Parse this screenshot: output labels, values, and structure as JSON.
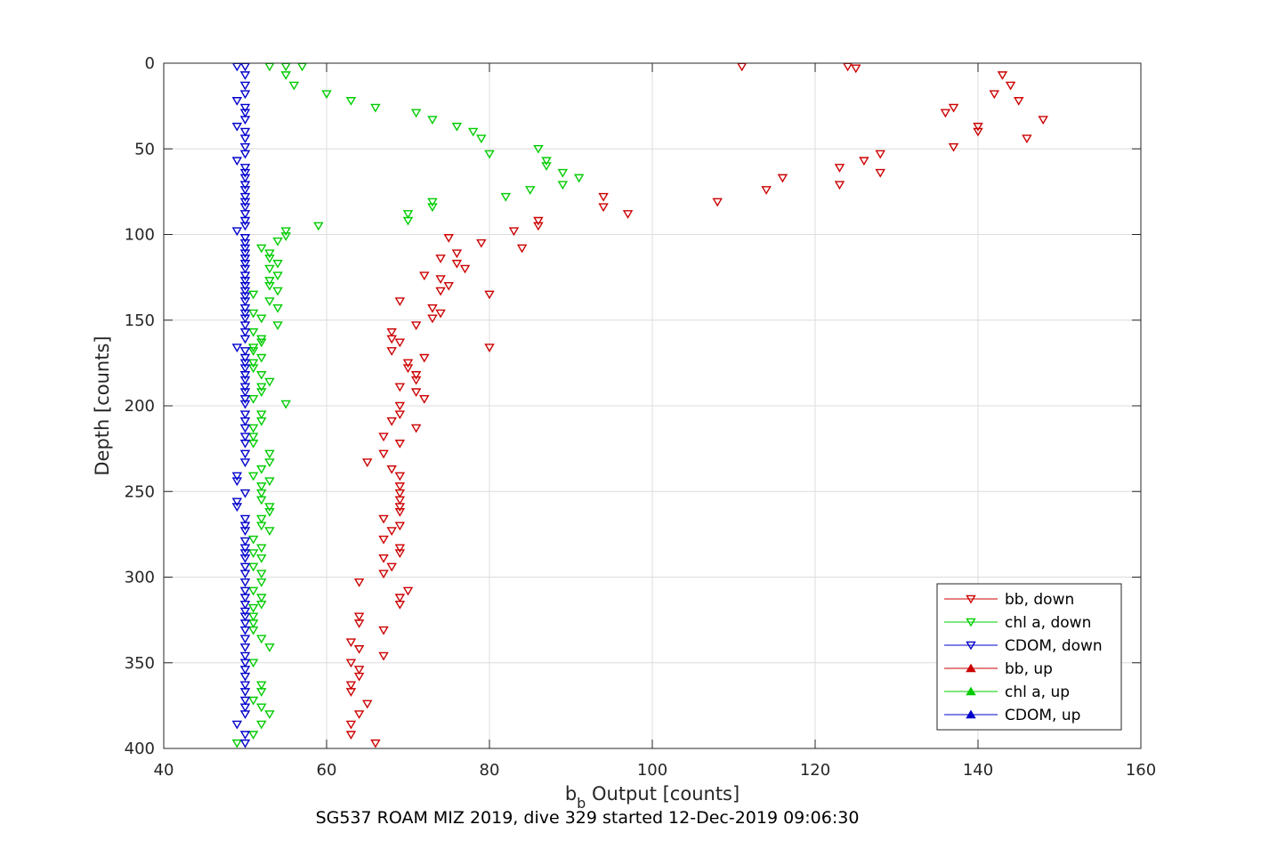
{
  "chart_data": {
    "type": "scatter",
    "xlabel_main": "b",
    "xlabel_sub": "b",
    "xlabel_rest": " Output [counts]",
    "ylabel": "Depth [counts]",
    "caption": "SG537 ROAM MIZ 2019, dive 329 started 12-Dec-2019 09:06:30",
    "xlim": [
      40,
      160
    ],
    "ylim": [
      0,
      400
    ],
    "y_reversed": true,
    "grid": true,
    "legend_position": "bottom-right",
    "x_ticks": [
      "40",
      "60",
      "80",
      "100",
      "120",
      "140",
      "160"
    ],
    "y_ticks": [
      "0",
      "50",
      "100",
      "150",
      "200",
      "250",
      "300",
      "350",
      "400"
    ],
    "series": [
      {
        "name": "bb, down",
        "color": "#cc0000",
        "marker": "triangle-down",
        "points": [
          [
            111,
            2
          ],
          [
            124,
            2
          ],
          [
            125,
            3
          ],
          [
            143,
            7
          ],
          [
            144,
            13
          ],
          [
            142,
            18
          ],
          [
            145,
            22
          ],
          [
            137,
            26
          ],
          [
            136,
            29
          ],
          [
            148,
            33
          ],
          [
            140,
            37
          ],
          [
            140,
            40
          ],
          [
            146,
            44
          ],
          [
            137,
            49
          ],
          [
            128,
            53
          ],
          [
            126,
            57
          ],
          [
            123,
            61
          ],
          [
            128,
            64
          ],
          [
            116,
            67
          ],
          [
            123,
            71
          ],
          [
            114,
            74
          ],
          [
            94,
            78
          ],
          [
            108,
            81
          ],
          [
            94,
            84
          ],
          [
            97,
            88
          ],
          [
            86,
            92
          ],
          [
            86,
            95
          ],
          [
            83,
            98
          ],
          [
            75,
            102
          ],
          [
            79,
            105
          ],
          [
            84,
            108
          ],
          [
            76,
            111
          ],
          [
            74,
            114
          ],
          [
            76,
            117
          ],
          [
            77,
            120
          ],
          [
            72,
            124
          ],
          [
            74,
            126
          ],
          [
            75,
            130
          ],
          [
            74,
            133
          ],
          [
            80,
            135
          ],
          [
            69,
            139
          ],
          [
            73,
            143
          ],
          [
            74,
            146
          ],
          [
            73,
            149
          ],
          [
            71,
            153
          ],
          [
            68,
            157
          ],
          [
            68,
            161
          ],
          [
            69,
            163
          ],
          [
            80,
            166
          ],
          [
            68,
            168
          ],
          [
            72,
            172
          ],
          [
            70,
            175
          ],
          [
            70,
            178
          ],
          [
            71,
            182
          ],
          [
            71,
            185
          ],
          [
            69,
            189
          ],
          [
            71,
            192
          ],
          [
            72,
            196
          ],
          [
            69,
            200
          ],
          [
            69,
            205
          ],
          [
            68,
            209
          ],
          [
            71,
            213
          ],
          [
            67,
            218
          ],
          [
            69,
            222
          ],
          [
            67,
            228
          ],
          [
            65,
            233
          ],
          [
            68,
            237
          ],
          [
            69,
            241
          ],
          [
            69,
            247
          ],
          [
            69,
            251
          ],
          [
            69,
            255
          ],
          [
            69,
            259
          ],
          [
            69,
            262
          ],
          [
            67,
            266
          ],
          [
            69,
            270
          ],
          [
            68,
            273
          ],
          [
            67,
            278
          ],
          [
            69,
            283
          ],
          [
            69,
            286
          ],
          [
            67,
            289
          ],
          [
            68,
            294
          ],
          [
            67,
            298
          ],
          [
            64,
            303
          ],
          [
            70,
            308
          ],
          [
            69,
            312
          ],
          [
            69,
            316
          ],
          [
            64,
            323
          ],
          [
            64,
            327
          ],
          [
            67,
            331
          ],
          [
            63,
            338
          ],
          [
            64,
            342
          ],
          [
            67,
            346
          ],
          [
            63,
            350
          ],
          [
            64,
            354
          ],
          [
            64,
            358
          ],
          [
            63,
            363
          ],
          [
            63,
            367
          ],
          [
            65,
            374
          ],
          [
            64,
            380
          ],
          [
            63,
            386
          ],
          [
            63,
            392
          ],
          [
            66,
            397
          ]
        ]
      },
      {
        "name": "chl a, down",
        "color": "#00cc00",
        "marker": "triangle-down",
        "points": [
          [
            53,
            2
          ],
          [
            55,
            2
          ],
          [
            57,
            2
          ],
          [
            55,
            7
          ],
          [
            56,
            13
          ],
          [
            60,
            18
          ],
          [
            63,
            22
          ],
          [
            66,
            26
          ],
          [
            71,
            29
          ],
          [
            73,
            33
          ],
          [
            76,
            37
          ],
          [
            78,
            40
          ],
          [
            79,
            44
          ],
          [
            80,
            53
          ],
          [
            86,
            50
          ],
          [
            87,
            57
          ],
          [
            87,
            60
          ],
          [
            89,
            64
          ],
          [
            91,
            67
          ],
          [
            89,
            71
          ],
          [
            85,
            74
          ],
          [
            82,
            78
          ],
          [
            73,
            81
          ],
          [
            73,
            84
          ],
          [
            70,
            88
          ],
          [
            70,
            92
          ],
          [
            59,
            95
          ],
          [
            55,
            98
          ],
          [
            55,
            101
          ],
          [
            54,
            104
          ],
          [
            52,
            108
          ],
          [
            53,
            111
          ],
          [
            53,
            114
          ],
          [
            54,
            117
          ],
          [
            53,
            120
          ],
          [
            54,
            124
          ],
          [
            53,
            127
          ],
          [
            53,
            130
          ],
          [
            54,
            133
          ],
          [
            51,
            135
          ],
          [
            53,
            139
          ],
          [
            54,
            143
          ],
          [
            51,
            146
          ],
          [
            52,
            149
          ],
          [
            54,
            153
          ],
          [
            51,
            157
          ],
          [
            52,
            161
          ],
          [
            52,
            163
          ],
          [
            51,
            166
          ],
          [
            51,
            168
          ],
          [
            52,
            172
          ],
          [
            51,
            175
          ],
          [
            51,
            178
          ],
          [
            52,
            182
          ],
          [
            53,
            186
          ],
          [
            52,
            189
          ],
          [
            52,
            192
          ],
          [
            51,
            196
          ],
          [
            55,
            199
          ],
          [
            52,
            205
          ],
          [
            52,
            209
          ],
          [
            51,
            213
          ],
          [
            51,
            218
          ],
          [
            51,
            222
          ],
          [
            53,
            228
          ],
          [
            53,
            233
          ],
          [
            52,
            237
          ],
          [
            51,
            241
          ],
          [
            53,
            244
          ],
          [
            52,
            247
          ],
          [
            52,
            251
          ],
          [
            52,
            255
          ],
          [
            53,
            259
          ],
          [
            53,
            262
          ],
          [
            52,
            266
          ],
          [
            52,
            270
          ],
          [
            53,
            273
          ],
          [
            51,
            278
          ],
          [
            52,
            283
          ],
          [
            51,
            286
          ],
          [
            52,
            289
          ],
          [
            51,
            294
          ],
          [
            52,
            298
          ],
          [
            52,
            303
          ],
          [
            51,
            308
          ],
          [
            52,
            312
          ],
          [
            52,
            316
          ],
          [
            51,
            318
          ],
          [
            51,
            323
          ],
          [
            51,
            327
          ],
          [
            51,
            331
          ],
          [
            52,
            336
          ],
          [
            53,
            341
          ],
          [
            51,
            350
          ],
          [
            52,
            363
          ],
          [
            52,
            367
          ],
          [
            51,
            372
          ],
          [
            52,
            376
          ],
          [
            53,
            380
          ],
          [
            52,
            386
          ],
          [
            51,
            392
          ],
          [
            49,
            397
          ]
        ]
      },
      {
        "name": "CDOM, down",
        "color": "#0000cc",
        "marker": "triangle-down",
        "points": [
          [
            49,
            2
          ],
          [
            50,
            2
          ],
          [
            50,
            7
          ],
          [
            50,
            13
          ],
          [
            50,
            18
          ],
          [
            49,
            22
          ],
          [
            50,
            26
          ],
          [
            50,
            29
          ],
          [
            50,
            33
          ],
          [
            49,
            37
          ],
          [
            50,
            40
          ],
          [
            50,
            44
          ],
          [
            50,
            49
          ],
          [
            50,
            53
          ],
          [
            49,
            57
          ],
          [
            50,
            61
          ],
          [
            50,
            64
          ],
          [
            50,
            67
          ],
          [
            50,
            71
          ],
          [
            50,
            74
          ],
          [
            50,
            78
          ],
          [
            50,
            81
          ],
          [
            50,
            84
          ],
          [
            50,
            88
          ],
          [
            50,
            92
          ],
          [
            50,
            95
          ],
          [
            49,
            98
          ],
          [
            50,
            102
          ],
          [
            50,
            105
          ],
          [
            50,
            108
          ],
          [
            50,
            111
          ],
          [
            50,
            114
          ],
          [
            50,
            117
          ],
          [
            50,
            120
          ],
          [
            50,
            124
          ],
          [
            50,
            127
          ],
          [
            50,
            130
          ],
          [
            50,
            133
          ],
          [
            50,
            136
          ],
          [
            50,
            139
          ],
          [
            50,
            143
          ],
          [
            50,
            146
          ],
          [
            50,
            149
          ],
          [
            50,
            153
          ],
          [
            50,
            157
          ],
          [
            50,
            161
          ],
          [
            49,
            166
          ],
          [
            50,
            168
          ],
          [
            50,
            172
          ],
          [
            50,
            175
          ],
          [
            50,
            178
          ],
          [
            50,
            182
          ],
          [
            50,
            185
          ],
          [
            50,
            189
          ],
          [
            50,
            192
          ],
          [
            50,
            196
          ],
          [
            50,
            199
          ],
          [
            50,
            205
          ],
          [
            50,
            209
          ],
          [
            50,
            213
          ],
          [
            50,
            218
          ],
          [
            50,
            222
          ],
          [
            50,
            228
          ],
          [
            50,
            233
          ],
          [
            49,
            241
          ],
          [
            49,
            244
          ],
          [
            50,
            251
          ],
          [
            49,
            256
          ],
          [
            49,
            259
          ],
          [
            50,
            266
          ],
          [
            50,
            270
          ],
          [
            50,
            273
          ],
          [
            50,
            279
          ],
          [
            50,
            283
          ],
          [
            50,
            286
          ],
          [
            50,
            289
          ],
          [
            50,
            294
          ],
          [
            50,
            298
          ],
          [
            50,
            303
          ],
          [
            50,
            308
          ],
          [
            50,
            312
          ],
          [
            50,
            316
          ],
          [
            50,
            320
          ],
          [
            50,
            323
          ],
          [
            50,
            327
          ],
          [
            50,
            331
          ],
          [
            50,
            336
          ],
          [
            50,
            341
          ],
          [
            50,
            346
          ],
          [
            50,
            350
          ],
          [
            50,
            354
          ],
          [
            50,
            358
          ],
          [
            50,
            363
          ],
          [
            50,
            367
          ],
          [
            50,
            372
          ],
          [
            50,
            376
          ],
          [
            50,
            380
          ],
          [
            49,
            386
          ],
          [
            50,
            392
          ],
          [
            50,
            397
          ]
        ]
      },
      {
        "name": "bb, up",
        "color": "#cc0000",
        "marker": "triangle-up",
        "points": []
      },
      {
        "name": "chl a, up",
        "color": "#00cc00",
        "marker": "triangle-up",
        "points": []
      },
      {
        "name": "CDOM, up",
        "color": "#0000cc",
        "marker": "triangle-up",
        "points": []
      }
    ]
  }
}
